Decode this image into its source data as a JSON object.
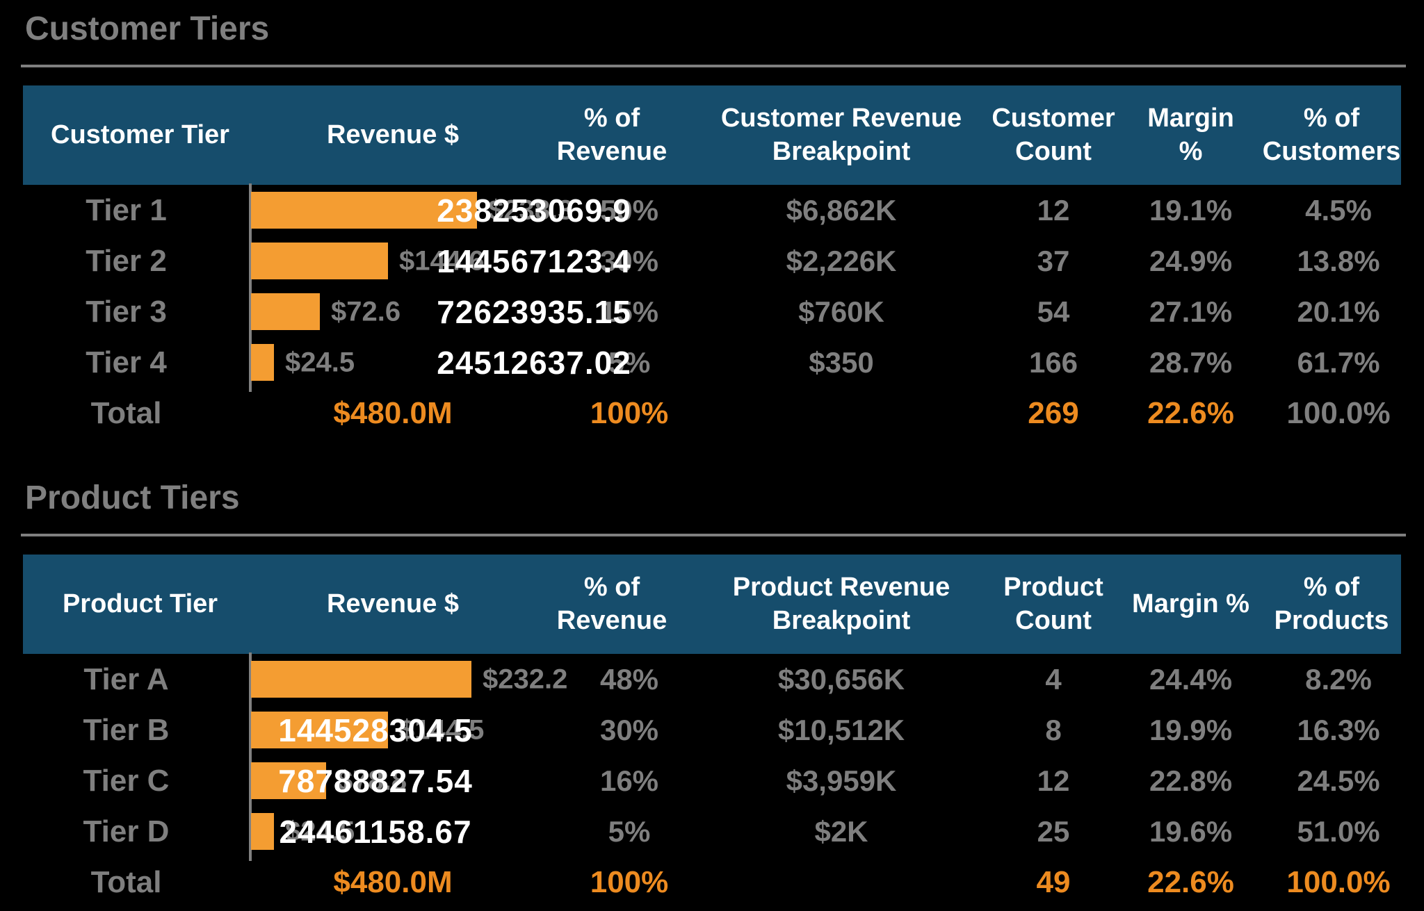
{
  "colors": {
    "background": "#000000",
    "header_bg": "#164D6C",
    "header_text": "#FFFFFF",
    "bar_orange": "#F49D32",
    "total_orange": "#ED8B20",
    "gray_text": "#7F7F7F",
    "raw_white": "#FFFFFF",
    "axis_gray": "#808080"
  },
  "sections": [
    {
      "title": "Customer Tiers",
      "headers": {
        "tier": "Customer Tier",
        "revenue": "Revenue $",
        "pct_revenue": "% of\nRevenue",
        "breakpoint": "Customer Revenue\nBreakpoint",
        "count": "Customer\nCount",
        "margin": "Margin\n%",
        "pct_entities": "% of\nCustomers"
      },
      "rows": [
        {
          "tier": "Tier 1",
          "revenue_m": 238.3,
          "bar_label": "$238.3",
          "raw_value": "238253069.9",
          "pct_revenue": "50%",
          "breakpoint": "$6,862K",
          "count": "12",
          "margin": "19.1%",
          "pct_entities": "4.5%"
        },
        {
          "tier": "Tier 2",
          "revenue_m": 144.6,
          "bar_label": "$144.6",
          "raw_value": "144567123.4",
          "pct_revenue": "30%",
          "breakpoint": "$2,226K",
          "count": "37",
          "margin": "24.9%",
          "pct_entities": "13.8%"
        },
        {
          "tier": "Tier 3",
          "revenue_m": 72.6,
          "bar_label": "$72.6",
          "raw_value": "72623935.15",
          "pct_revenue": "15%",
          "breakpoint": "$760K",
          "count": "54",
          "margin": "27.1%",
          "pct_entities": "20.1%"
        },
        {
          "tier": "Tier 4",
          "revenue_m": 24.5,
          "bar_label": "$24.5",
          "raw_value": "24512637.02",
          "pct_revenue": "5%",
          "breakpoint": "$350",
          "count": "166",
          "margin": "28.7%",
          "pct_entities": "61.7%"
        }
      ],
      "total": {
        "label": "Total",
        "revenue": "$480.0M",
        "pct_revenue": "100%",
        "breakpoint": "",
        "count": "269",
        "margin": "22.6%",
        "pct_entities": "100.0%"
      }
    },
    {
      "title": "Product Tiers",
      "headers": {
        "tier": "Product Tier",
        "revenue": "Revenue $",
        "pct_revenue": "% of\nRevenue",
        "breakpoint": "Product Revenue\nBreakpoint",
        "count": "Product\nCount",
        "margin": "Margin %",
        "pct_entities": "% of\nProducts"
      },
      "rows": [
        {
          "tier": "Tier A",
          "revenue_m": 232.2,
          "bar_label": "$232.2",
          "raw_value": "232230504.2",
          "pct_revenue": "48%",
          "breakpoint": "$30,656K",
          "count": "4",
          "margin": "24.4%",
          "pct_entities": "8.2%"
        },
        {
          "tier": "Tier B",
          "revenue_m": 144.5,
          "bar_label": "$144.5",
          "raw_value": "144528304.5",
          "pct_revenue": "30%",
          "breakpoint": "$10,512K",
          "count": "8",
          "margin": "19.9%",
          "pct_entities": "16.3%"
        },
        {
          "tier": "Tier C",
          "revenue_m": 78.8,
          "bar_label": "$78.8",
          "raw_value": "78788827.54",
          "pct_revenue": "16%",
          "breakpoint": "$3,959K",
          "count": "12",
          "margin": "22.8%",
          "pct_entities": "24.5%"
        },
        {
          "tier": "Tier D",
          "revenue_m": 24.5,
          "bar_label": "$24.5",
          "raw_value": "24461158.67",
          "pct_revenue": "5%",
          "breakpoint": "$2K",
          "count": "25",
          "margin": "19.6%",
          "pct_entities": "51.0%"
        }
      ],
      "total": {
        "label": "Total",
        "revenue": "$480.0M",
        "pct_revenue": "100%",
        "breakpoint": "",
        "count": "49",
        "margin": "22.6%",
        "pct_entities": "100.0%"
      }
    }
  ],
  "chart_data": [
    {
      "type": "bar",
      "title": "Customer Tiers",
      "orientation": "horizontal",
      "categories": [
        "Tier 1",
        "Tier 2",
        "Tier 3",
        "Tier 4"
      ],
      "values": [
        238.3,
        144.6,
        72.6,
        24.5
      ],
      "value_unit": "USD millions",
      "bar_color": "#F49D32",
      "columns": [
        "Customer Tier",
        "Revenue $",
        "% of Revenue",
        "Customer Revenue Breakpoint",
        "Customer Count",
        "Margin %",
        "% of Customers"
      ],
      "rows": [
        [
          "Tier 1",
          "238253069.9",
          "50%",
          "$6,862K",
          "12",
          "19.1%",
          "4.5%"
        ],
        [
          "Tier 2",
          "144567123.4",
          "30%",
          "$2,226K",
          "37",
          "24.9%",
          "13.8%"
        ],
        [
          "Tier 3",
          "72623935.15",
          "15%",
          "$760K",
          "54",
          "27.1%",
          "20.1%"
        ],
        [
          "Tier 4",
          "24512637.02",
          "5%",
          "$350",
          "166",
          "28.7%",
          "61.7%"
        ],
        [
          "Total",
          "$480.0M",
          "100%",
          "",
          "269",
          "22.6%",
          "100.0%"
        ]
      ]
    },
    {
      "type": "bar",
      "title": "Product Tiers",
      "orientation": "horizontal",
      "categories": [
        "Tier A",
        "Tier B",
        "Tier C",
        "Tier D"
      ],
      "values": [
        232.2,
        144.5,
        78.8,
        24.5
      ],
      "value_unit": "USD millions",
      "bar_color": "#F49D32",
      "columns": [
        "Product Tier",
        "Revenue $",
        "% of Revenue",
        "Product Revenue Breakpoint",
        "Product Count",
        "Margin %",
        "% of Products"
      ],
      "rows": [
        [
          "Tier A",
          "232230504.2",
          "48%",
          "$30,656K",
          "4",
          "24.4%",
          "8.2%"
        ],
        [
          "Tier B",
          "144528304.5",
          "30%",
          "$10,512K",
          "8",
          "19.9%",
          "16.3%"
        ],
        [
          "Tier C",
          "78788827.54",
          "16%",
          "$3,959K",
          "12",
          "22.8%",
          "24.5%"
        ],
        [
          "Tier D",
          "24461158.67",
          "5%",
          "$2K",
          "25",
          "19.6%",
          "51.0%"
        ],
        [
          "Total",
          "$480.0M",
          "100%",
          "",
          "49",
          "22.6%",
          "100.0%"
        ]
      ]
    }
  ]
}
